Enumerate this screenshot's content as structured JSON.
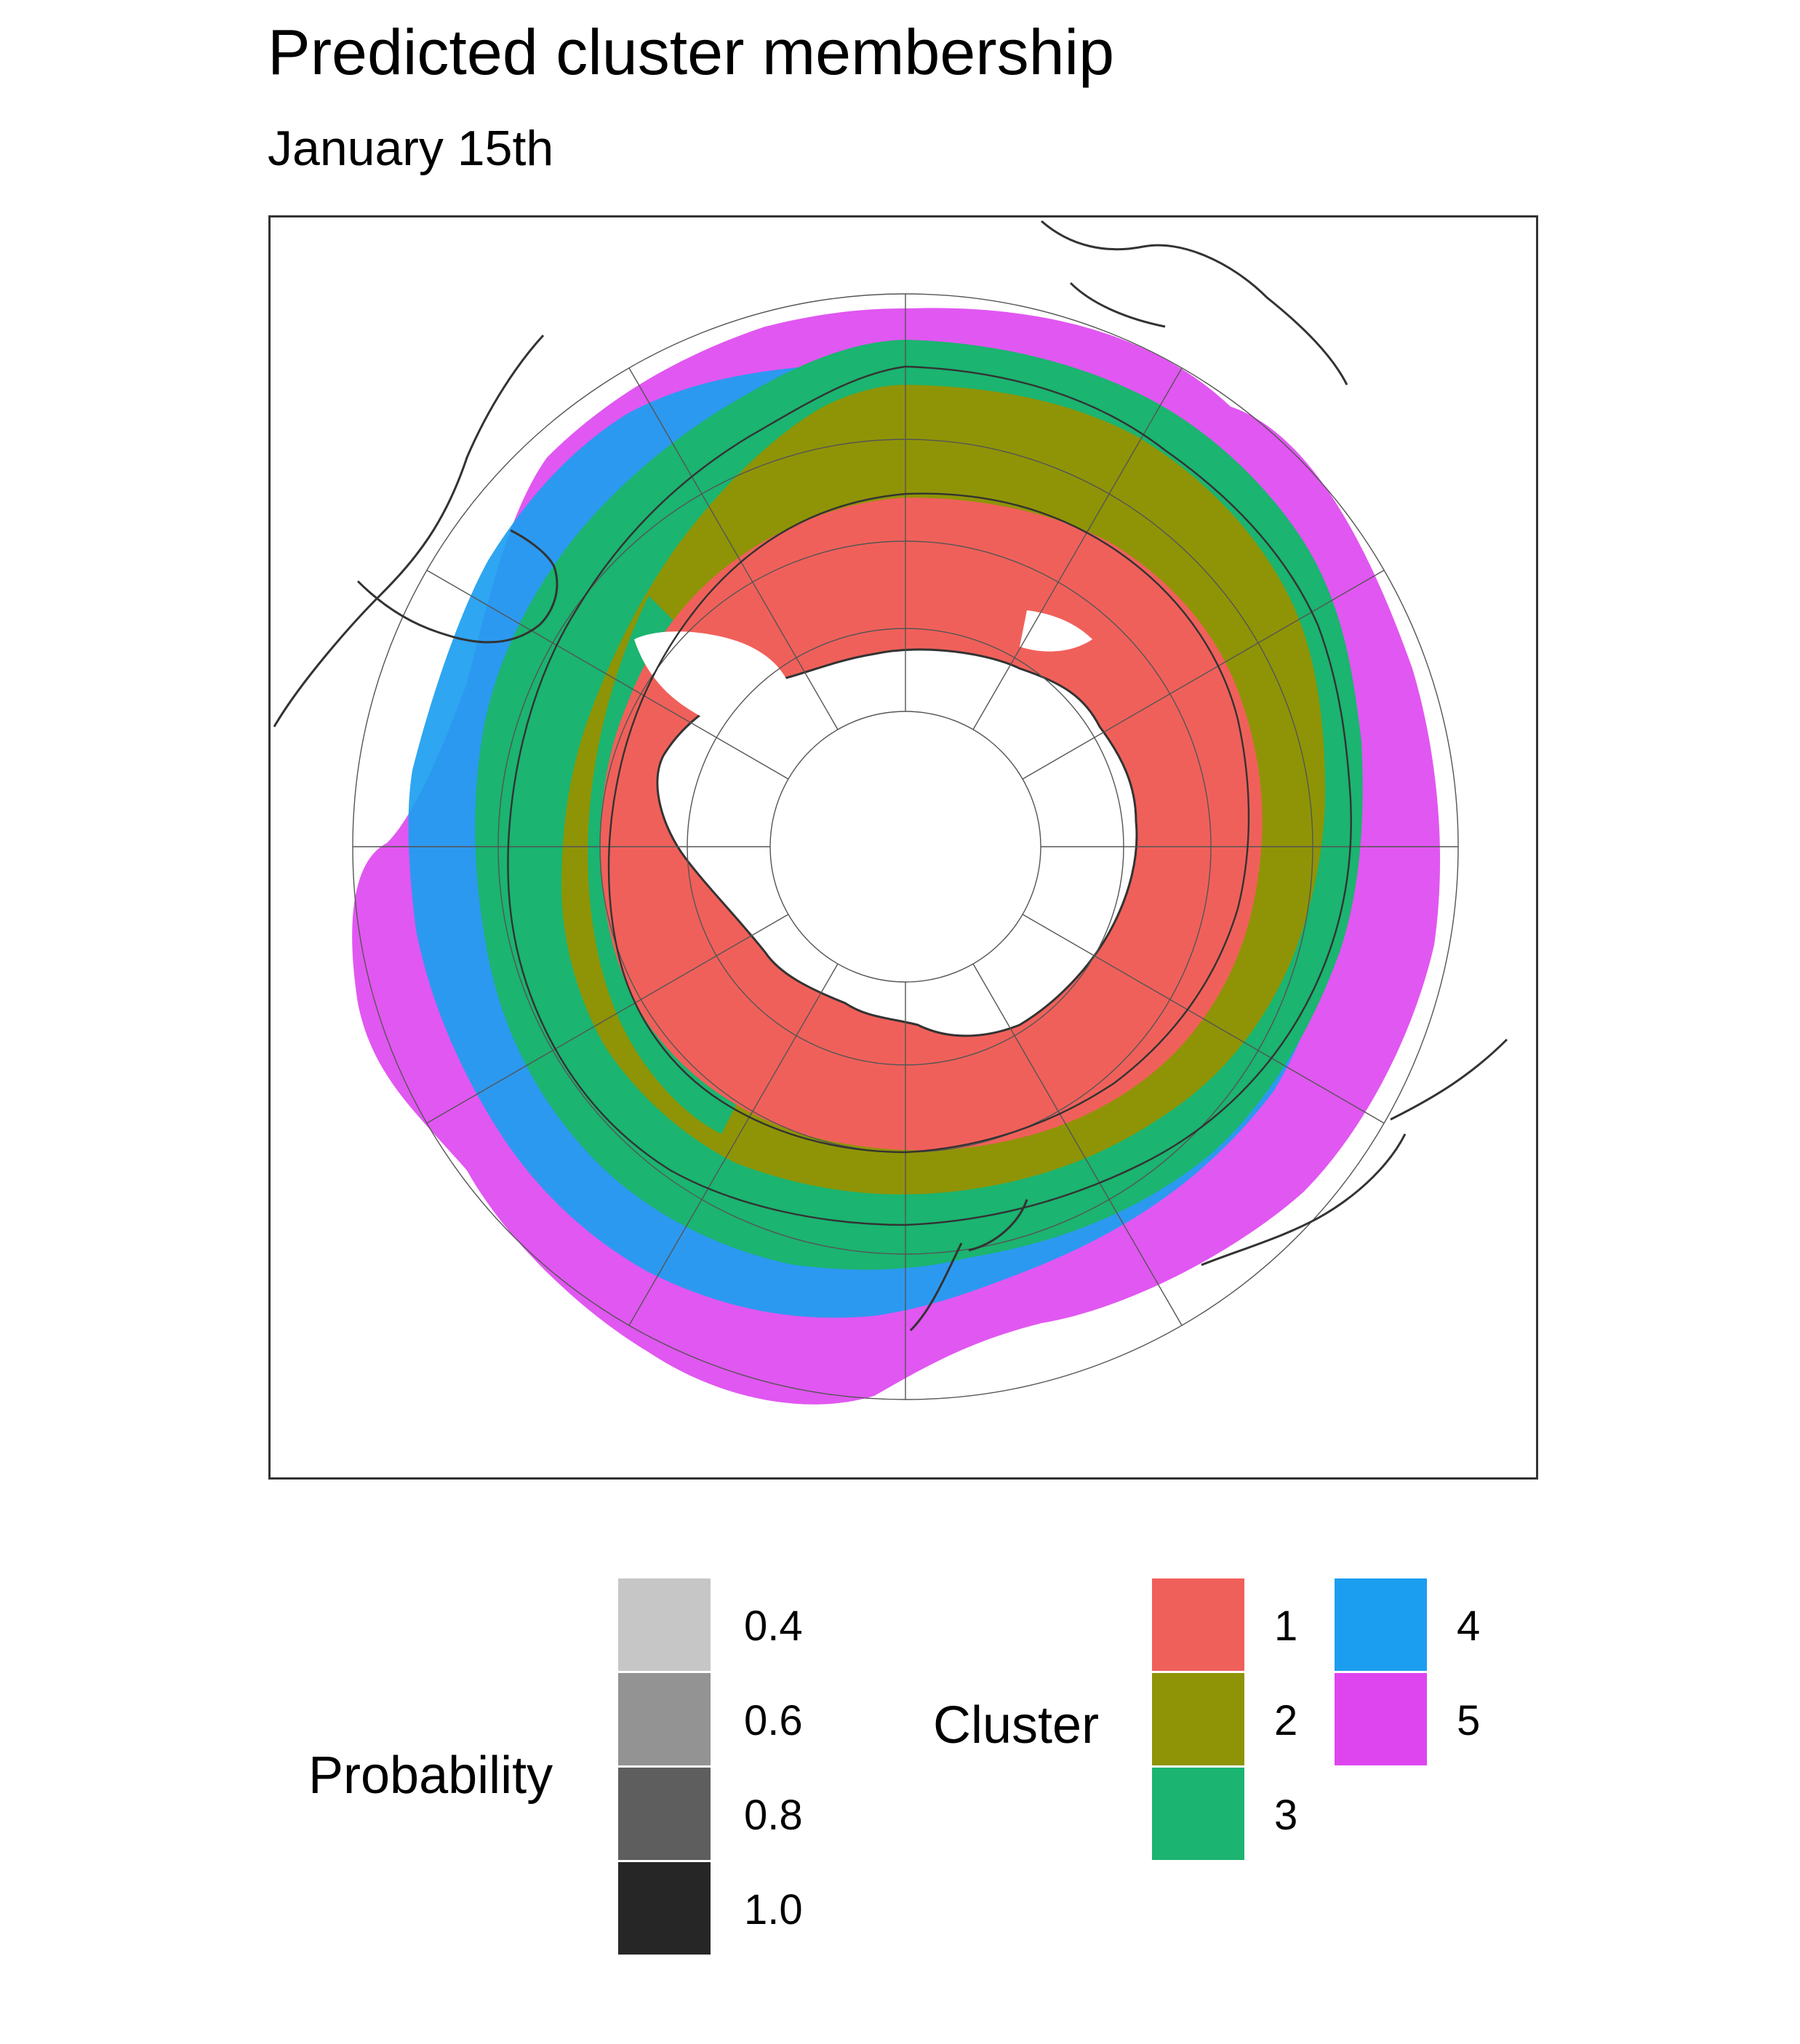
{
  "title": "Predicted cluster membership",
  "subtitle": "January 15th",
  "legend_probability": {
    "title": "Probability",
    "items": [
      {
        "label": "0.4",
        "value": 0.4,
        "color": "#c6c6c6"
      },
      {
        "label": "0.6",
        "value": 0.6,
        "color": "#939393"
      },
      {
        "label": "0.8",
        "value": 0.8,
        "color": "#5e5e5e"
      },
      {
        "label": "1.0",
        "value": 1.0,
        "color": "#262626"
      }
    ]
  },
  "legend_cluster": {
    "title": "Cluster",
    "items": [
      {
        "label": "1",
        "color": "#f0605a"
      },
      {
        "label": "2",
        "color": "#8f9406"
      },
      {
        "label": "3",
        "color": "#1bb470"
      },
      {
        "label": "4",
        "color": "#1c9ef0"
      },
      {
        "label": "5",
        "color": "#de45ef"
      }
    ]
  },
  "map": {
    "projection": "south-polar stereographic",
    "graticule": true,
    "coastlines": true
  }
}
